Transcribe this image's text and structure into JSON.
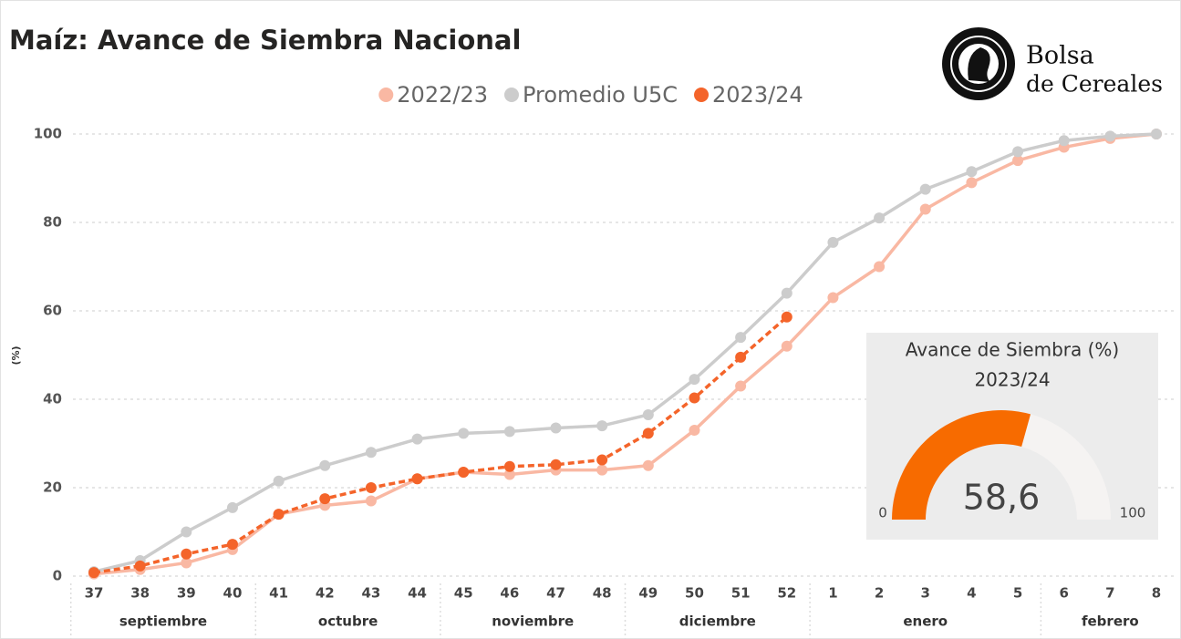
{
  "chart_data": {
    "type": "line",
    "title": "Maíz: Avance de Siembra Nacional",
    "y_label": "(%)",
    "logo": {
      "line1": "Bolsa",
      "line2": "de Cereales"
    },
    "categories": [
      "37",
      "38",
      "39",
      "40",
      "41",
      "42",
      "43",
      "44",
      "45",
      "46",
      "47",
      "48",
      "49",
      "50",
      "51",
      "52",
      "1",
      "2",
      "3",
      "4",
      "5",
      "6",
      "7",
      "8"
    ],
    "months": [
      "septiembre",
      "septiembre",
      "septiembre",
      "septiembre",
      "octubre",
      "octubre",
      "octubre",
      "octubre",
      "noviembre",
      "noviembre",
      "noviembre",
      "noviembre",
      "diciembre",
      "diciembre",
      "diciembre",
      "diciembre",
      "enero",
      "enero",
      "enero",
      "enero",
      "enero",
      "febrero",
      "febrero",
      "febrero"
    ],
    "series": [
      {
        "name": "2022/23",
        "color": "#f9b8a3",
        "dashed": false,
        "values": [
          0.5,
          1.5,
          3,
          6,
          14,
          16,
          17,
          22,
          23.5,
          23,
          24,
          24,
          25,
          33,
          43,
          52,
          63,
          70,
          83,
          89,
          94,
          97,
          99,
          100
        ]
      },
      {
        "name": "Promedio U5C",
        "color": "#cccccc",
        "dashed": false,
        "values": [
          1,
          3.5,
          10,
          15.5,
          21.5,
          25,
          28,
          31,
          32.3,
          32.7,
          33.5,
          34,
          36.5,
          44.5,
          54,
          64,
          75.5,
          81,
          87.5,
          91.5,
          96,
          98.5,
          99.5,
          100
        ]
      },
      {
        "name": "2023/24",
        "color": "#f4642a",
        "dashed": true,
        "values": [
          0.8,
          2.3,
          5,
          7.2,
          14,
          17.5,
          20,
          22,
          23.5,
          24.8,
          25.2,
          26.3,
          32.3,
          40.3,
          49.5,
          58.6,
          null,
          null,
          null,
          null,
          null,
          null,
          null,
          null
        ]
      }
    ],
    "ylim": [
      0,
      100
    ],
    "yticks": [
      0,
      20,
      40,
      60,
      80,
      100
    ],
    "grid": true,
    "gauge": {
      "title": "Avance de Siembra (%)",
      "subtitle": "2023/24",
      "value": 58.6,
      "value_label": "58,6",
      "min": 0,
      "max": 100,
      "color": "#f76b00",
      "track_color": "#f5f3f2"
    }
  }
}
